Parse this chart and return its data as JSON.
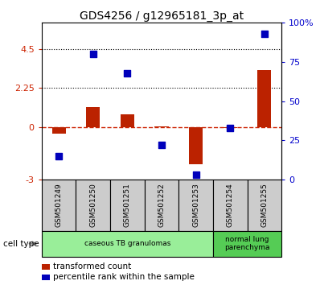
{
  "title": "GDS4256 / g12965181_3p_at",
  "samples": [
    "GSM501249",
    "GSM501250",
    "GSM501251",
    "GSM501252",
    "GSM501253",
    "GSM501254",
    "GSM501255"
  ],
  "transformed_count": [
    -0.35,
    1.15,
    0.75,
    0.05,
    -2.1,
    -0.05,
    3.3
  ],
  "percentile_rank": [
    15,
    80,
    68,
    22,
    3,
    33,
    93
  ],
  "ylim_left": [
    -3,
    6
  ],
  "ylim_right": [
    0,
    100
  ],
  "yticks_left": [
    -3,
    0,
    2.25,
    4.5
  ],
  "ytick_labels_left": [
    "-3",
    "0",
    "2.25",
    "4.5"
  ],
  "yticks_right": [
    0,
    25,
    50,
    75,
    100
  ],
  "ytick_labels_right": [
    "0",
    "25",
    "50",
    "75",
    "100%"
  ],
  "hline_zero": 0,
  "hlines_dotted": [
    2.25,
    4.5
  ],
  "bar_color": "#bb2200",
  "dot_color": "#0000bb",
  "tick_label_color_left": "#cc2200",
  "tick_label_color_right": "#0000cc",
  "legend_bar_label": "transformed count",
  "legend_dot_label": "percentile rank within the sample",
  "cell_type_label": "cell type",
  "bar_width": 0.4,
  "dot_size": 40,
  "zero_line_color": "#cc2200",
  "dotted_line_color": "#000000",
  "sample_box_color": "#cccccc",
  "ct_groups": [
    {
      "start": 0,
      "end": 4,
      "label": "caseous TB granulomas",
      "color": "#99ee99"
    },
    {
      "start": 5,
      "end": 6,
      "label": "normal lung\nparenchyma",
      "color": "#55cc55"
    }
  ]
}
